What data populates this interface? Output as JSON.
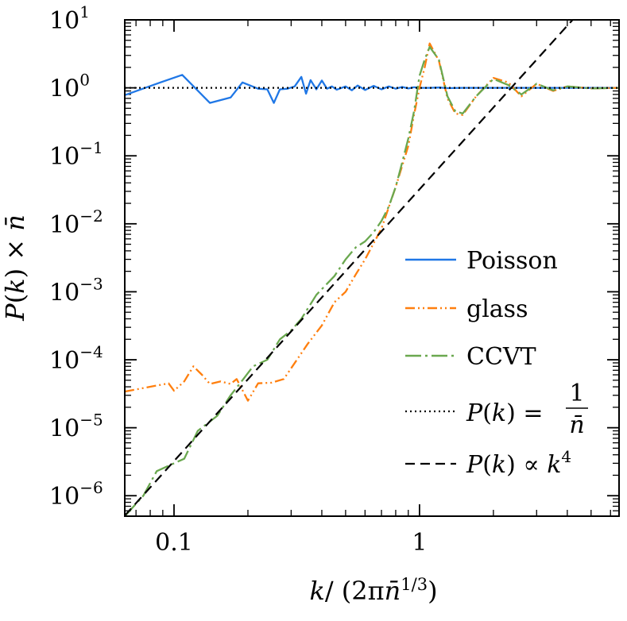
{
  "chart_data": {
    "type": "line",
    "title": "",
    "xlabel": "k/ (2π n̄^(1/3))",
    "ylabel": "P(k) × n̄",
    "xscale": "log",
    "yscale": "log",
    "xlim": [
      0.063,
      6.5
    ],
    "ylim": [
      5e-07,
      10
    ],
    "grid": false,
    "legend": "lower-right",
    "x_ticks": [
      {
        "value": 0.1,
        "label": "0.1"
      },
      {
        "value": 1,
        "label": "1"
      }
    ],
    "y_ticks": [
      {
        "value": 10,
        "base": "10",
        "exp": "1"
      },
      {
        "value": 1,
        "base": "10",
        "exp": "0"
      },
      {
        "value": 0.1,
        "base": "10",
        "exp": "−1"
      },
      {
        "value": 0.01,
        "base": "10",
        "exp": "−2"
      },
      {
        "value": 0.001,
        "base": "10",
        "exp": "−3"
      },
      {
        "value": 0.0001,
        "base": "10",
        "exp": "−4"
      },
      {
        "value": 1e-05,
        "base": "10",
        "exp": "−5"
      },
      {
        "value": 1e-06,
        "base": "10",
        "exp": "−6"
      }
    ],
    "series": [
      {
        "name": "Poisson",
        "color": "#1f77e6",
        "style": "solid",
        "x": [
          0.063,
          0.088,
          0.108,
          0.14,
          0.17,
          0.19,
          0.22,
          0.24,
          0.255,
          0.27,
          0.29,
          0.31,
          0.33,
          0.345,
          0.36,
          0.38,
          0.4,
          0.42,
          0.44,
          0.46,
          0.5,
          0.53,
          0.56,
          0.6,
          0.65,
          0.7,
          0.75,
          0.8,
          0.85,
          0.9,
          0.95,
          1.0,
          1.1,
          1.2,
          1.3,
          1.5,
          1.7,
          2.0,
          2.5,
          3.0,
          3.5,
          4.0,
          5.0,
          6.5
        ],
        "y": [
          0.78,
          1.2,
          1.55,
          0.6,
          0.72,
          1.2,
          0.97,
          0.95,
          0.6,
          0.95,
          0.97,
          1.05,
          1.45,
          0.82,
          1.3,
          0.95,
          1.28,
          0.97,
          1.05,
          0.94,
          1.05,
          0.92,
          1.08,
          0.93,
          1.07,
          0.95,
          1.05,
          0.97,
          1.03,
          0.98,
          1.02,
          1.0,
          1.0,
          1.01,
          0.99,
          1.0,
          1.0,
          1.0,
          1.0,
          1.0,
          1.0,
          1.0,
          1.0,
          1.0
        ]
      },
      {
        "name": "glass",
        "color": "#ff7f0e",
        "style": "dashdotdot",
        "x": [
          0.063,
          0.095,
          0.1,
          0.11,
          0.12,
          0.13,
          0.14,
          0.155,
          0.17,
          0.18,
          0.2,
          0.22,
          0.25,
          0.28,
          0.3,
          0.35,
          0.4,
          0.45,
          0.5,
          0.55,
          0.6,
          0.7,
          0.8,
          0.9,
          0.95,
          1.0,
          1.05,
          1.1,
          1.2,
          1.3,
          1.4,
          1.5,
          1.7,
          2.0,
          2.3,
          2.6,
          3.0,
          3.5,
          4.0,
          5.0,
          6.5
        ],
        "y": [
          3.4e-05,
          4.5e-05,
          3.5e-05,
          4.8e-05,
          8e-05,
          6e-05,
          4.4e-05,
          4.8e-05,
          4.4e-05,
          5.2e-05,
          2.5e-05,
          4.5e-05,
          4.6e-05,
          5.2e-05,
          7.5e-05,
          0.00017,
          0.00032,
          0.0007,
          0.001,
          0.0018,
          0.003,
          0.0085,
          0.035,
          0.14,
          0.4,
          1.0,
          2.0,
          4.5,
          2.5,
          0.7,
          0.42,
          0.4,
          0.75,
          1.4,
          1.2,
          0.75,
          1.15,
          0.9,
          1.05,
          0.98,
          1.0
        ]
      },
      {
        "name": "CCVT",
        "color": "#6aa84f",
        "style": "longdash",
        "x": [
          0.063,
          0.075,
          0.085,
          0.1,
          0.11,
          0.125,
          0.15,
          0.17,
          0.19,
          0.21,
          0.24,
          0.27,
          0.3,
          0.33,
          0.38,
          0.45,
          0.5,
          0.55,
          0.6,
          0.65,
          0.7,
          0.75,
          0.8,
          0.85,
          0.9,
          0.95,
          1.0,
          1.05,
          1.1,
          1.2,
          1.3,
          1.4,
          1.5,
          1.7,
          2.0,
          2.3,
          2.6,
          3.0,
          3.5,
          4.0,
          5.0,
          6.5
        ],
        "y": [
          5e-07,
          1e-06,
          2.3e-06,
          3e-06,
          3.5e-06,
          9e-06,
          1.5e-05,
          3e-05,
          5e-05,
          8e-05,
          0.0001,
          0.0002,
          0.00027,
          0.0004,
          0.0009,
          0.0017,
          0.003,
          0.0045,
          0.0055,
          0.0075,
          0.011,
          0.018,
          0.035,
          0.08,
          0.18,
          0.45,
          1.5,
          2.6,
          4.0,
          2.6,
          0.75,
          0.45,
          0.42,
          0.75,
          1.35,
          1.1,
          0.8,
          1.15,
          0.92,
          1.05,
          0.98,
          1.0
        ]
      },
      {
        "name": "P(k) = 1/n̄",
        "color": "#000000",
        "style": "dotted",
        "x": [
          0.063,
          6.5
        ],
        "y": [
          1,
          1
        ]
      },
      {
        "name": "P(k) ∝ k^4",
        "color": "#000000",
        "style": "dashed",
        "x": [
          0.063,
          4.8
        ],
        "y": [
          5.1e-07,
          17
        ]
      }
    ]
  }
}
